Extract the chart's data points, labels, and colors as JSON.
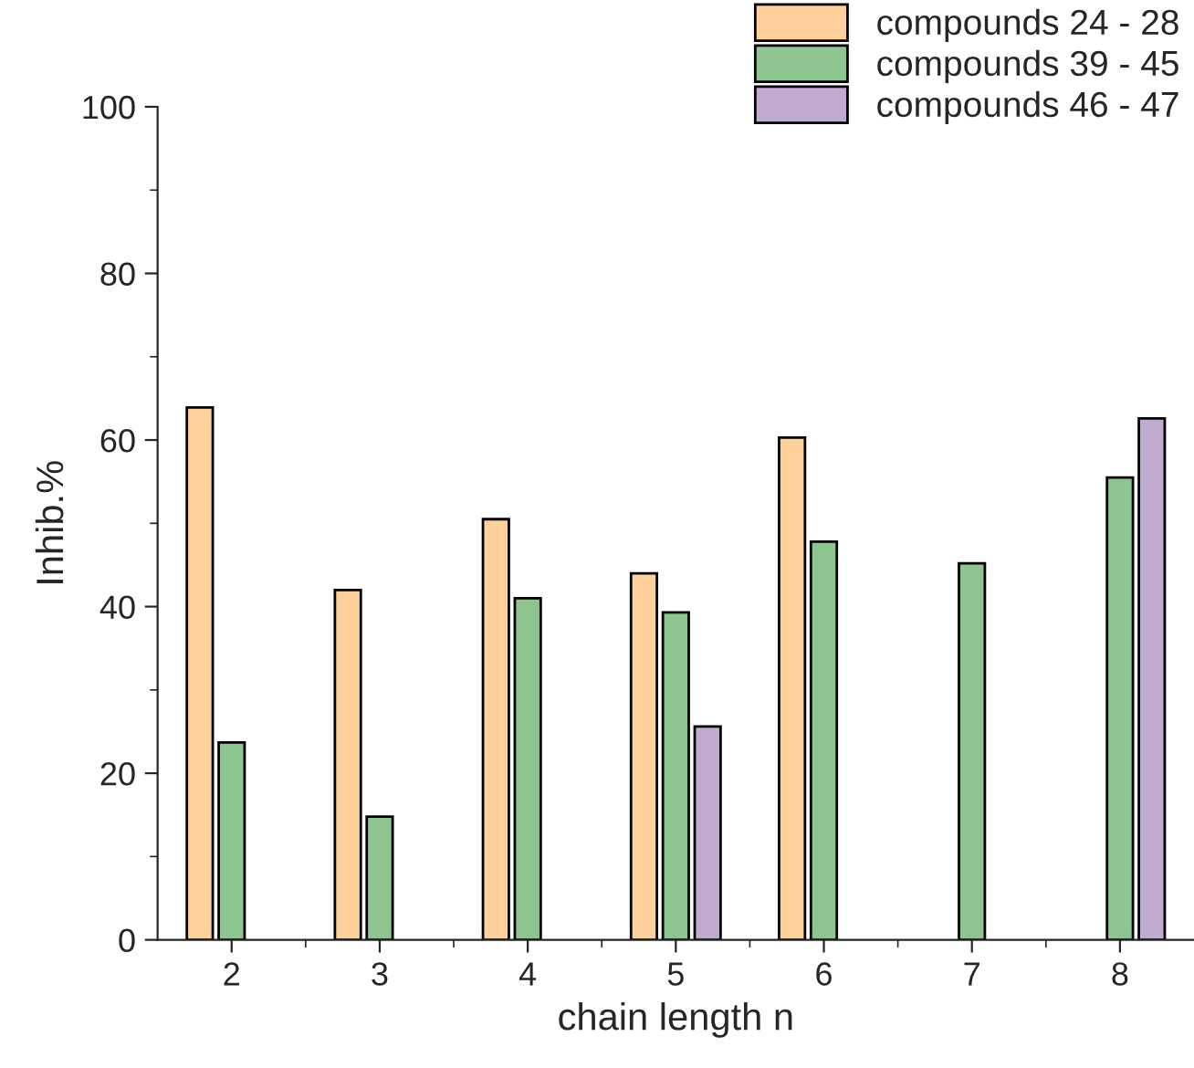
{
  "chart_data": {
    "type": "bar",
    "xlabel": "chain length n",
    "ylabel": "Inhib.%",
    "categories": [
      "2",
      "3",
      "4",
      "5",
      "6",
      "7",
      "8"
    ],
    "series": [
      {
        "name": "compounds 24 - 28",
        "color": "#fdd199",
        "values": [
          63.9,
          42,
          50.5,
          44,
          60.3,
          null,
          null
        ]
      },
      {
        "name": "compounds 39 - 45",
        "color": "#8dc58f",
        "values": [
          23.7,
          14.8,
          41,
          39.3,
          47.8,
          45.2,
          55.5
        ]
      },
      {
        "name": "compounds 46 - 47",
        "color": "#c0aacf",
        "values": [
          null,
          null,
          null,
          25.6,
          null,
          null,
          62.6
        ]
      }
    ],
    "ylim": [
      0,
      100
    ],
    "yticks": [
      0,
      20,
      40,
      60,
      80,
      100
    ],
    "grid": false,
    "legend": "top right"
  }
}
